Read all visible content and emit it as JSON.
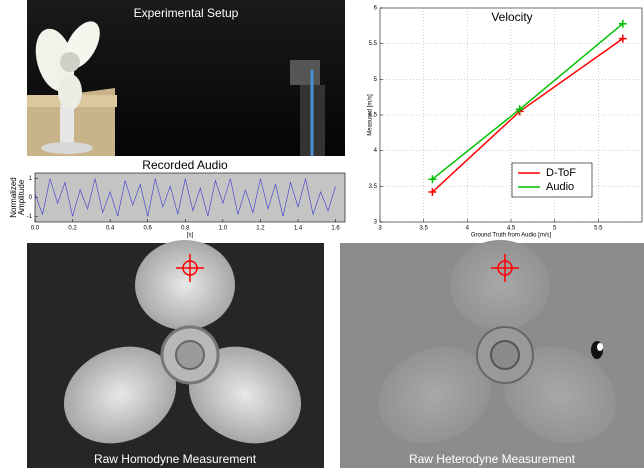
{
  "photos": [
    {
      "caption": "Experimental Setup"
    },
    {
      "caption": "Raw Homodyne Measurement"
    },
    {
      "caption": "Raw Heterodyne Measurement"
    }
  ],
  "chart_data": [
    {
      "type": "line",
      "title": "Recorded Audio",
      "xlabel": "[s]",
      "ylabel": [
        "Normalized",
        "Amplitude"
      ],
      "xlim": [
        0,
        1.65
      ],
      "ylim": [
        -1.3,
        1.3
      ],
      "xticks": [
        {
          "value": 0,
          "label": "0.0"
        },
        0.2,
        0.4,
        0.6,
        0.8,
        {
          "value": 1,
          "label": "1.0"
        },
        1.2,
        1.4,
        1.6
      ],
      "yticks": [
        -1,
        0,
        1
      ],
      "grid": false,
      "plot_background": "#c4c4c4",
      "markers": false,
      "x": [
        0,
        0.04,
        0.08,
        0.12,
        0.16,
        0.2,
        0.24,
        0.28,
        0.32,
        0.36,
        0.4,
        0.44,
        0.48,
        0.52,
        0.56,
        0.6,
        0.64,
        0.68,
        0.72,
        0.76,
        0.8,
        0.84,
        0.88,
        0.92,
        0.96,
        1,
        1.04,
        1.08,
        1.12,
        1.16,
        1.2,
        1.24,
        1.28,
        1.32,
        1.36,
        1.4,
        1.44,
        1.48,
        1.52,
        1.56,
        1.6
      ],
      "series": [
        {
          "name": "audio",
          "color": "#3a3ad0",
          "values": [
            0.2,
            -0.9,
            1.0,
            -0.3,
            0.8,
            -1.0,
            0.4,
            -0.6,
            1.0,
            -0.8,
            0.3,
            -1.0,
            0.9,
            -0.4,
            0.7,
            -1.0,
            1.0,
            -0.5,
            0.6,
            -0.9,
            1.0,
            -0.7,
            0.5,
            -1.0,
            0.9,
            -0.3,
            1.0,
            -0.9,
            0.4,
            -0.8,
            1.0,
            -0.6,
            0.7,
            -1.0,
            0.8,
            -0.5,
            1.0,
            -0.9,
            0.3,
            -0.7,
            0.6
          ]
        }
      ]
    },
    {
      "type": "line",
      "title": "Velocity",
      "xlabel": "Ground Truth from Audio [m/s]",
      "ylabel": "Measured [m/s]",
      "xlim": [
        3,
        6
      ],
      "ylim": [
        3,
        6
      ],
      "xticks": [
        3,
        3.5,
        4,
        4.5,
        5,
        5.5
      ],
      "yticks": [
        3,
        3.5,
        4,
        4.5,
        5,
        5.5,
        6
      ],
      "grid": true,
      "plot_background": "#ffffff",
      "markers": true,
      "legend": "lower right",
      "x": [
        3.6,
        4.6,
        5.78
      ],
      "series": [
        {
          "name": "D-ToF",
          "color": "#ff0000",
          "values": [
            3.42,
            4.55,
            5.57
          ]
        },
        {
          "name": "Audio",
          "color": "#00c000",
          "values": [
            3.6,
            4.58,
            5.78
          ]
        }
      ]
    }
  ]
}
